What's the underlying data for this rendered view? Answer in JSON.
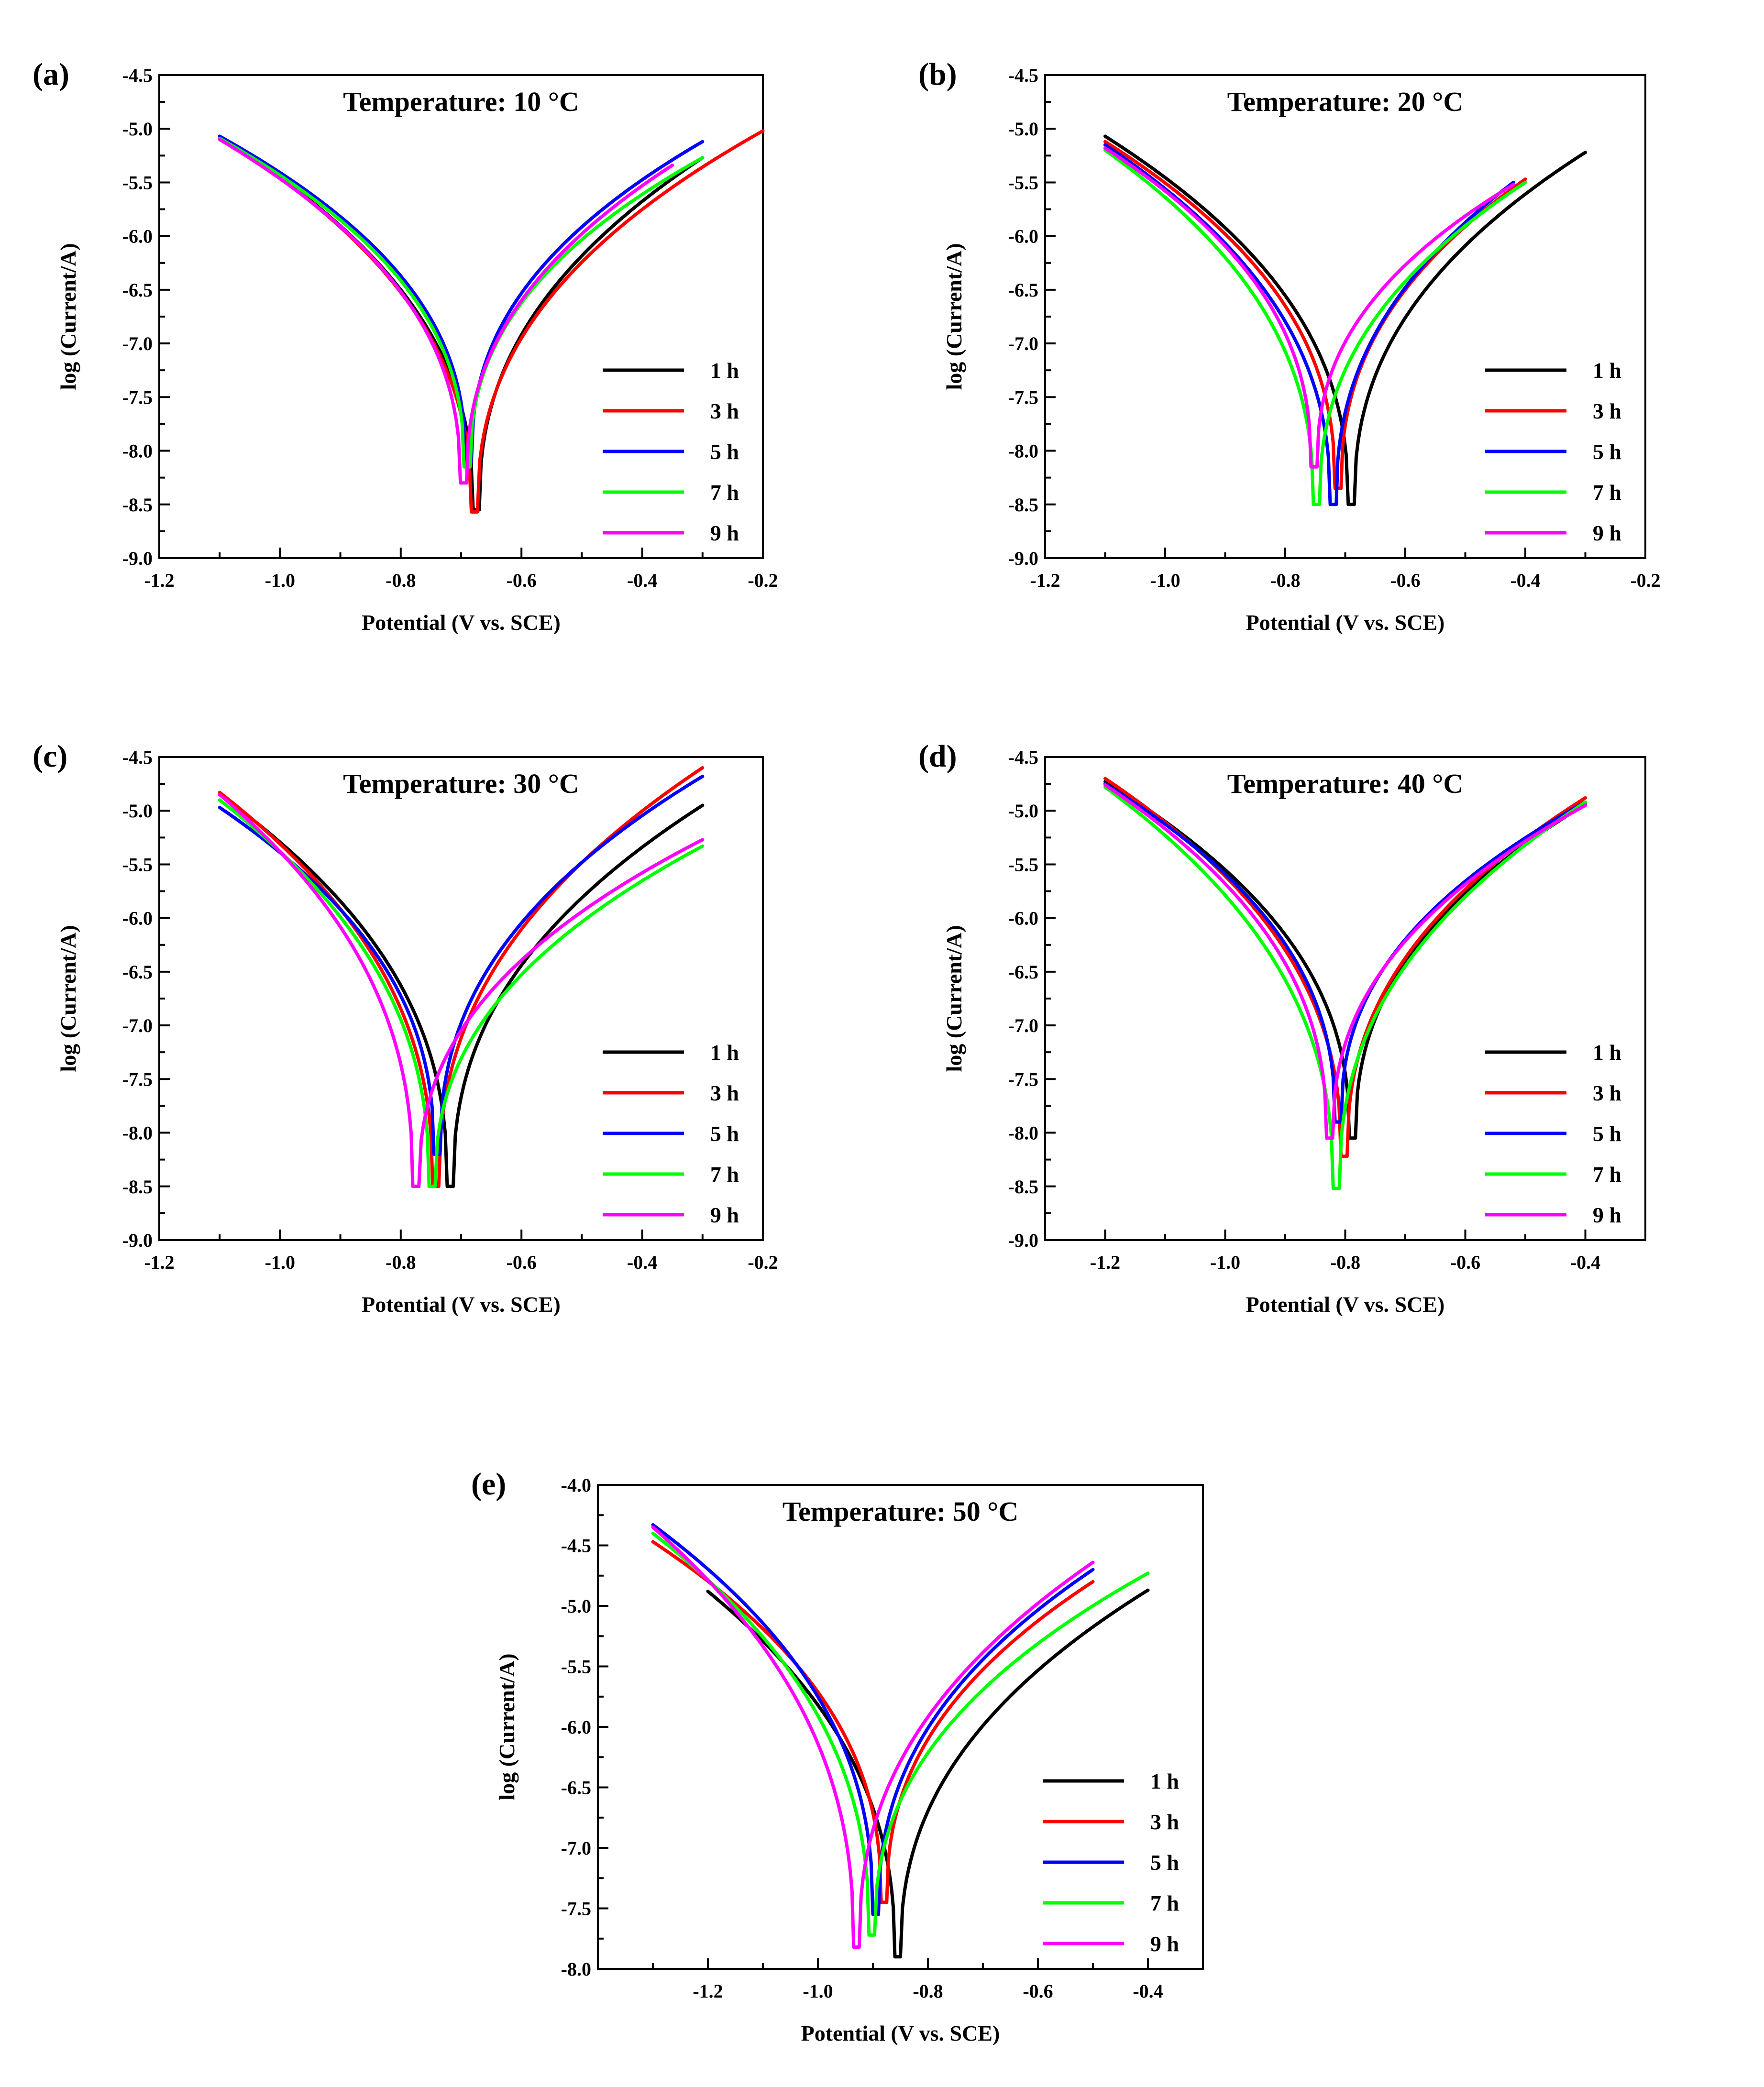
{
  "figure": {
    "background": "#ffffff"
  },
  "series_colors": {
    "1 h": "#000000",
    "3 h": "#ff0000",
    "5 h": "#0000ff",
    "7 h": "#00ff00",
    "9 h": "#ff00ff"
  },
  "chart_data": [
    {
      "type": "line",
      "panel_label": "(a)",
      "title": "Temperature: 10 °C",
      "xlabel": "Potential (V vs. SCE)",
      "ylabel": "log (Current/A)",
      "xlim": [
        -1.2,
        -0.2
      ],
      "ylim": [
        -9.0,
        -4.5
      ],
      "xticks": [
        -1.2,
        -1.0,
        -0.8,
        -0.6,
        -0.4,
        -0.2
      ],
      "xtick_labels": [
        "-1.2",
        "-1.0",
        "-0.8",
        "-0.6",
        "-0.4",
        "-0.2"
      ],
      "yticks": [
        -4.5,
        -5.0,
        -5.5,
        -6.0,
        -6.5,
        -7.0,
        -7.5,
        -8.0,
        -8.5,
        -9.0
      ],
      "ytick_labels": [
        "-4.5",
        "-5.0",
        "-5.5",
        "-6.0",
        "-6.5",
        "-7.0",
        "-7.5",
        "-8.0",
        "-8.5",
        "-9.0"
      ],
      "legend_position": "bottom-right",
      "series": [
        {
          "name": "1 h",
          "ecorr": -0.675,
          "logi_min": -8.55,
          "start": [
            -1.1,
            -5.08
          ],
          "end": [
            -0.3,
            -5.27
          ]
        },
        {
          "name": "3 h",
          "ecorr": -0.678,
          "logi_min": -8.57,
          "start": [
            -1.1,
            -5.08
          ],
          "end": [
            -0.2,
            -5.02
          ]
        },
        {
          "name": "5 h",
          "ecorr": -0.688,
          "logi_min": -8.1,
          "start": [
            -1.1,
            -5.07
          ],
          "end": [
            -0.3,
            -5.12
          ]
        },
        {
          "name": "7 h",
          "ecorr": -0.69,
          "logi_min": -8.15,
          "start": [
            -1.1,
            -5.09
          ],
          "end": [
            -0.3,
            -5.27
          ]
        },
        {
          "name": "9 h",
          "ecorr": -0.696,
          "logi_min": -8.3,
          "start": [
            -1.1,
            -5.1
          ],
          "end": [
            -0.35,
            -5.34
          ]
        }
      ]
    },
    {
      "type": "line",
      "panel_label": "(b)",
      "title": "Temperature: 20 °C",
      "xlabel": "Potential (V vs. SCE)",
      "ylabel": "log (Current/A)",
      "xlim": [
        -1.2,
        -0.2
      ],
      "ylim": [
        -9.0,
        -4.5
      ],
      "xticks": [
        -1.2,
        -1.0,
        -0.8,
        -0.6,
        -0.4,
        -0.2
      ],
      "xtick_labels": [
        "-1.2",
        "-1.0",
        "-0.8",
        "-0.6",
        "-0.4",
        "-0.2"
      ],
      "yticks": [
        -4.5,
        -5.0,
        -5.5,
        -6.0,
        -6.5,
        -7.0,
        -7.5,
        -8.0,
        -8.5,
        -9.0
      ],
      "ytick_labels": [
        "-4.5",
        "-5.0",
        "-5.5",
        "-6.0",
        "-6.5",
        "-7.0",
        "-7.5",
        "-8.0",
        "-8.5",
        "-9.0"
      ],
      "legend_position": "bottom-right",
      "series": [
        {
          "name": "1 h",
          "ecorr": -0.69,
          "logi_min": -8.5,
          "start": [
            -1.1,
            -5.07
          ],
          "end": [
            -0.3,
            -5.22
          ]
        },
        {
          "name": "3 h",
          "ecorr": -0.712,
          "logi_min": -8.35,
          "start": [
            -1.1,
            -5.12
          ],
          "end": [
            -0.4,
            -5.47
          ]
        },
        {
          "name": "5 h",
          "ecorr": -0.72,
          "logi_min": -8.5,
          "start": [
            -1.1,
            -5.15
          ],
          "end": [
            -0.42,
            -5.5
          ]
        },
        {
          "name": "7 h",
          "ecorr": -0.748,
          "logi_min": -8.5,
          "start": [
            -1.1,
            -5.2
          ],
          "end": [
            -0.4,
            -5.5
          ]
        },
        {
          "name": "9 h",
          "ecorr": -0.752,
          "logi_min": -8.15,
          "start": [
            -1.1,
            -5.18
          ],
          "end": [
            -0.42,
            -5.52
          ]
        }
      ]
    },
    {
      "type": "line",
      "panel_label": "(c)",
      "title": "Temperature: 30 °C",
      "xlabel": "Potential (V vs. SCE)",
      "ylabel": "log (Current/A)",
      "xlim": [
        -1.2,
        -0.2
      ],
      "ylim": [
        -9.0,
        -4.5
      ],
      "xticks": [
        -1.2,
        -1.0,
        -0.8,
        -0.6,
        -0.4,
        -0.2
      ],
      "xtick_labels": [
        "-1.2",
        "-1.0",
        "-0.8",
        "-0.6",
        "-0.4",
        "-0.2"
      ],
      "yticks": [
        -4.5,
        -5.0,
        -5.5,
        -6.0,
        -6.5,
        -7.0,
        -7.5,
        -8.0,
        -8.5,
        -9.0
      ],
      "ytick_labels": [
        "-4.5",
        "-5.0",
        "-5.5",
        "-6.0",
        "-6.5",
        "-7.0",
        "-7.5",
        "-8.0",
        "-8.5",
        "-9.0"
      ],
      "legend_position": "bottom-right",
      "series": [
        {
          "name": "1 h",
          "ecorr": -0.718,
          "logi_min": -8.5,
          "start": [
            -1.1,
            -4.85
          ],
          "end": [
            -0.3,
            -4.95
          ]
        },
        {
          "name": "3 h",
          "ecorr": -0.742,
          "logi_min": -8.5,
          "start": [
            -1.1,
            -4.83
          ],
          "end": [
            -0.3,
            -4.6
          ]
        },
        {
          "name": "5 h",
          "ecorr": -0.74,
          "logi_min": -8.2,
          "start": [
            -1.1,
            -4.97
          ],
          "end": [
            -0.3,
            -4.68
          ]
        },
        {
          "name": "7 h",
          "ecorr": -0.748,
          "logi_min": -8.5,
          "start": [
            -1.1,
            -4.9
          ],
          "end": [
            -0.3,
            -5.33
          ]
        },
        {
          "name": "9 h",
          "ecorr": -0.775,
          "logi_min": -8.5,
          "start": [
            -1.1,
            -4.85
          ],
          "end": [
            -0.3,
            -5.27
          ]
        }
      ]
    },
    {
      "type": "line",
      "panel_label": "(d)",
      "title": "Temperature: 40 °C",
      "xlabel": "Potential (V vs. SCE)",
      "ylabel": "log (Current/A)",
      "xlim": [
        -1.3,
        -0.3
      ],
      "ylim": [
        -9.0,
        -4.5
      ],
      "xticks": [
        -1.2,
        -1.0,
        -0.8,
        -0.6,
        -0.4
      ],
      "xtick_labels": [
        "-1.2",
        "-1.0",
        "-0.8",
        "-0.6",
        "-0.4"
      ],
      "yticks": [
        -4.5,
        -5.0,
        -5.5,
        -6.0,
        -6.5,
        -7.0,
        -7.5,
        -8.0,
        -8.5,
        -9.0
      ],
      "ytick_labels": [
        "-4.5",
        "-5.0",
        "-5.5",
        "-6.0",
        "-6.5",
        "-7.0",
        "-7.5",
        "-8.0",
        "-8.5",
        "-9.0"
      ],
      "legend_position": "bottom-right",
      "series": [
        {
          "name": "1 h",
          "ecorr": -0.788,
          "logi_min": -8.05,
          "start": [
            -1.2,
            -4.73
          ],
          "end": [
            -0.4,
            -4.94
          ]
        },
        {
          "name": "3 h",
          "ecorr": -0.802,
          "logi_min": -8.22,
          "start": [
            -1.2,
            -4.7
          ],
          "end": [
            -0.4,
            -4.88
          ]
        },
        {
          "name": "5 h",
          "ecorr": -0.812,
          "logi_min": -7.9,
          "start": [
            -1.2,
            -4.75
          ],
          "end": [
            -0.4,
            -4.92
          ]
        },
        {
          "name": "7 h",
          "ecorr": -0.815,
          "logi_min": -8.52,
          "start": [
            -1.2,
            -4.78
          ],
          "end": [
            -0.4,
            -4.92
          ]
        },
        {
          "name": "9 h",
          "ecorr": -0.826,
          "logi_min": -8.05,
          "start": [
            -1.2,
            -4.76
          ],
          "end": [
            -0.4,
            -4.95
          ]
        }
      ]
    },
    {
      "type": "line",
      "panel_label": "(e)",
      "title": "Temperature: 50 °C",
      "xlabel": "Potential (V vs. SCE)",
      "ylabel": "log (Current/A)",
      "xlim": [
        -1.4,
        -0.3
      ],
      "ylim": [
        -8.0,
        -4.0
      ],
      "xticks": [
        -1.2,
        -1.0,
        -0.8,
        -0.6,
        -0.4
      ],
      "xtick_labels": [
        "-1.2",
        "-1.0",
        "-0.8",
        "-0.6",
        "-0.4"
      ],
      "yticks": [
        -4.0,
        -4.5,
        -5.0,
        -5.5,
        -6.0,
        -6.5,
        -7.0,
        -7.5,
        -8.0
      ],
      "ytick_labels": [
        "-4.0",
        "-4.5",
        "-5.0",
        "-5.5",
        "-6.0",
        "-6.5",
        "-7.0",
        "-7.5",
        "-8.0"
      ],
      "legend_position": "bottom-right",
      "series": [
        {
          "name": "1 h",
          "ecorr": -0.855,
          "logi_min": -7.9,
          "start": [
            -1.2,
            -4.88
          ],
          "end": [
            -0.4,
            -4.87
          ]
        },
        {
          "name": "3 h",
          "ecorr": -0.88,
          "logi_min": -7.45,
          "start": [
            -1.3,
            -4.47
          ],
          "end": [
            -0.5,
            -4.8
          ]
        },
        {
          "name": "5 h",
          "ecorr": -0.895,
          "logi_min": -7.55,
          "start": [
            -1.3,
            -4.33
          ],
          "end": [
            -0.5,
            -4.7
          ]
        },
        {
          "name": "7 h",
          "ecorr": -0.902,
          "logi_min": -7.72,
          "start": [
            -1.3,
            -4.4
          ],
          "end": [
            -0.4,
            -4.73
          ]
        },
        {
          "name": "9 h",
          "ecorr": -0.93,
          "logi_min": -7.82,
          "start": [
            -1.3,
            -4.35
          ],
          "end": [
            -0.5,
            -4.64
          ]
        }
      ]
    }
  ]
}
